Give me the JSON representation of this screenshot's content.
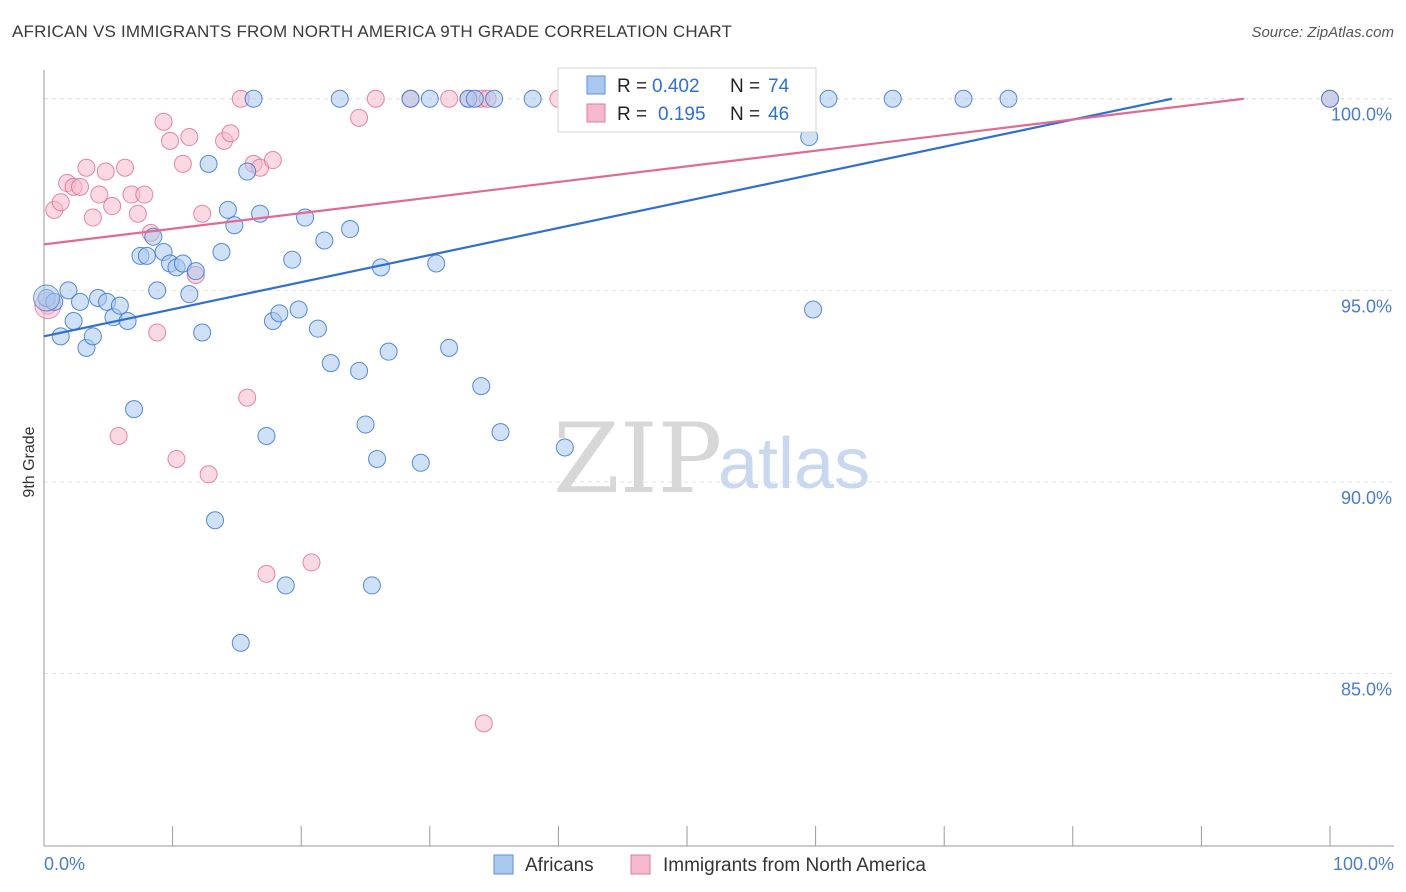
{
  "header": {
    "title": "AFRICAN VS IMMIGRANTS FROM NORTH AMERICA 9TH GRADE CORRELATION CHART",
    "source": "Source: ZipAtlas.com"
  },
  "watermark": {
    "zip": "ZIP",
    "atlas": "atlas"
  },
  "legend_box": {
    "rows": [
      {
        "r_key": "R =",
        "r": "0.402",
        "n_key": "N =",
        "n": "74",
        "color": "#a9c8f0"
      },
      {
        "r_key": "R =",
        "r": "0.195",
        "n_key": "N =",
        "n": "46",
        "color": "#f5b9cb"
      }
    ]
  },
  "bottom_legend": {
    "africans": "Africans",
    "immigrants": "Immigrants from North America"
  },
  "chart_data": {
    "type": "scatter",
    "title": "AFRICAN VS IMMIGRANTS FROM NORTH AMERICA 9TH GRADE CORRELATION CHART",
    "xlabel": "",
    "ylabel": "9th Grade",
    "xlim": [
      0,
      100
    ],
    "ylim": [
      80.5,
      100.75
    ],
    "x_tick_labels": [
      "0.0%",
      "100.0%"
    ],
    "y_ticks": [
      85,
      90,
      95,
      100
    ],
    "y_tick_labels": [
      "85.0%",
      "90.0%",
      "95.0%",
      "100.0%"
    ],
    "legend_position": "top-center",
    "colors": {
      "africans": "#2f6fd0",
      "africans_fill": "#a9c8f0",
      "immigrants": "#e06a93",
      "immigrants_fill": "#f5b9cb"
    },
    "series": [
      {
        "name": "Africans",
        "r": 0.402,
        "n": 74,
        "trend": {
          "x": [
            0,
            87.7
          ],
          "y": [
            93.8,
            100.0
          ]
        },
        "points": [
          [
            0.2,
            94.8
          ],
          [
            0.8,
            94.7
          ],
          [
            1.3,
            93.8
          ],
          [
            1.9,
            95.0
          ],
          [
            2.3,
            94.2
          ],
          [
            2.8,
            94.7
          ],
          [
            3.3,
            93.5
          ],
          [
            3.8,
            93.8
          ],
          [
            4.2,
            94.8
          ],
          [
            4.9,
            94.7
          ],
          [
            5.4,
            94.3
          ],
          [
            5.9,
            94.6
          ],
          [
            6.5,
            94.2
          ],
          [
            7.0,
            91.9
          ],
          [
            7.5,
            95.9
          ],
          [
            8.0,
            95.9
          ],
          [
            8.5,
            96.4
          ],
          [
            8.8,
            95.0
          ],
          [
            9.3,
            96.0
          ],
          [
            9.8,
            95.7
          ],
          [
            10.3,
            95.6
          ],
          [
            10.8,
            95.7
          ],
          [
            11.3,
            94.9
          ],
          [
            11.8,
            95.5
          ],
          [
            12.3,
            93.9
          ],
          [
            12.8,
            98.3
          ],
          [
            13.3,
            89.0
          ],
          [
            13.8,
            96.0
          ],
          [
            14.3,
            97.1
          ],
          [
            14.8,
            96.7
          ],
          [
            15.3,
            85.8
          ],
          [
            15.8,
            98.1
          ],
          [
            16.3,
            100.0
          ],
          [
            16.8,
            97.0
          ],
          [
            17.3,
            91.2
          ],
          [
            17.8,
            94.2
          ],
          [
            18.3,
            94.4
          ],
          [
            18.8,
            87.3
          ],
          [
            19.3,
            95.8
          ],
          [
            19.8,
            94.5
          ],
          [
            20.3,
            96.9
          ],
          [
            21.3,
            94.0
          ],
          [
            21.8,
            96.3
          ],
          [
            22.3,
            93.1
          ],
          [
            23.0,
            100.0
          ],
          [
            23.8,
            96.6
          ],
          [
            24.5,
            92.9
          ],
          [
            25.0,
            91.5
          ],
          [
            25.5,
            87.3
          ],
          [
            25.9,
            90.6
          ],
          [
            26.2,
            95.6
          ],
          [
            26.8,
            93.4
          ],
          [
            28.5,
            100.0
          ],
          [
            29.3,
            90.5
          ],
          [
            30.0,
            100.0
          ],
          [
            30.5,
            95.7
          ],
          [
            31.5,
            93.5
          ],
          [
            33.0,
            100.0
          ],
          [
            33.5,
            100.0
          ],
          [
            34.0,
            92.5
          ],
          [
            35.0,
            100.0
          ],
          [
            35.5,
            91.3
          ],
          [
            38.0,
            100.0
          ],
          [
            40.5,
            90.9
          ],
          [
            42.0,
            100.0
          ],
          [
            48.5,
            100.0
          ],
          [
            59.0,
            100.0
          ],
          [
            61.0,
            100.0
          ],
          [
            59.5,
            99.0
          ],
          [
            59.8,
            94.5
          ],
          [
            66.0,
            100.0
          ],
          [
            71.5,
            100.0
          ],
          [
            75.0,
            100.0
          ],
          [
            100.0,
            100.0
          ]
        ]
      },
      {
        "name": "Immigrants from North America",
        "r": 0.195,
        "n": 46,
        "trend": {
          "x": [
            0,
            93.3
          ],
          "y": [
            96.2,
            100.0
          ]
        },
        "points": [
          [
            0.3,
            94.6
          ],
          [
            0.8,
            97.1
          ],
          [
            1.3,
            97.3
          ],
          [
            1.8,
            97.8
          ],
          [
            2.3,
            97.7
          ],
          [
            2.8,
            97.7
          ],
          [
            3.3,
            98.2
          ],
          [
            3.8,
            96.9
          ],
          [
            4.3,
            97.5
          ],
          [
            4.8,
            98.1
          ],
          [
            5.3,
            97.2
          ],
          [
            5.8,
            91.2
          ],
          [
            6.3,
            98.2
          ],
          [
            6.8,
            97.5
          ],
          [
            7.3,
            97.0
          ],
          [
            7.8,
            97.5
          ],
          [
            8.3,
            96.5
          ],
          [
            8.8,
            93.9
          ],
          [
            9.3,
            99.4
          ],
          [
            9.8,
            98.9
          ],
          [
            10.3,
            90.6
          ],
          [
            10.8,
            98.3
          ],
          [
            11.3,
            99.0
          ],
          [
            11.8,
            95.4
          ],
          [
            12.3,
            97.0
          ],
          [
            12.8,
            90.2
          ],
          [
            14.0,
            98.9
          ],
          [
            14.5,
            99.1
          ],
          [
            15.3,
            100.0
          ],
          [
            15.8,
            92.2
          ],
          [
            16.3,
            98.3
          ],
          [
            16.8,
            98.2
          ],
          [
            17.3,
            87.6
          ],
          [
            17.8,
            98.4
          ],
          [
            20.8,
            87.9
          ],
          [
            24.5,
            99.5
          ],
          [
            25.8,
            100.0
          ],
          [
            28.5,
            100.0
          ],
          [
            31.5,
            100.0
          ],
          [
            33.0,
            100.0
          ],
          [
            34.0,
            100.0
          ],
          [
            34.5,
            100.0
          ],
          [
            34.2,
            83.7
          ],
          [
            40.0,
            100.0
          ],
          [
            45.0,
            100.0
          ],
          [
            100.0,
            100.0
          ]
        ]
      }
    ]
  }
}
